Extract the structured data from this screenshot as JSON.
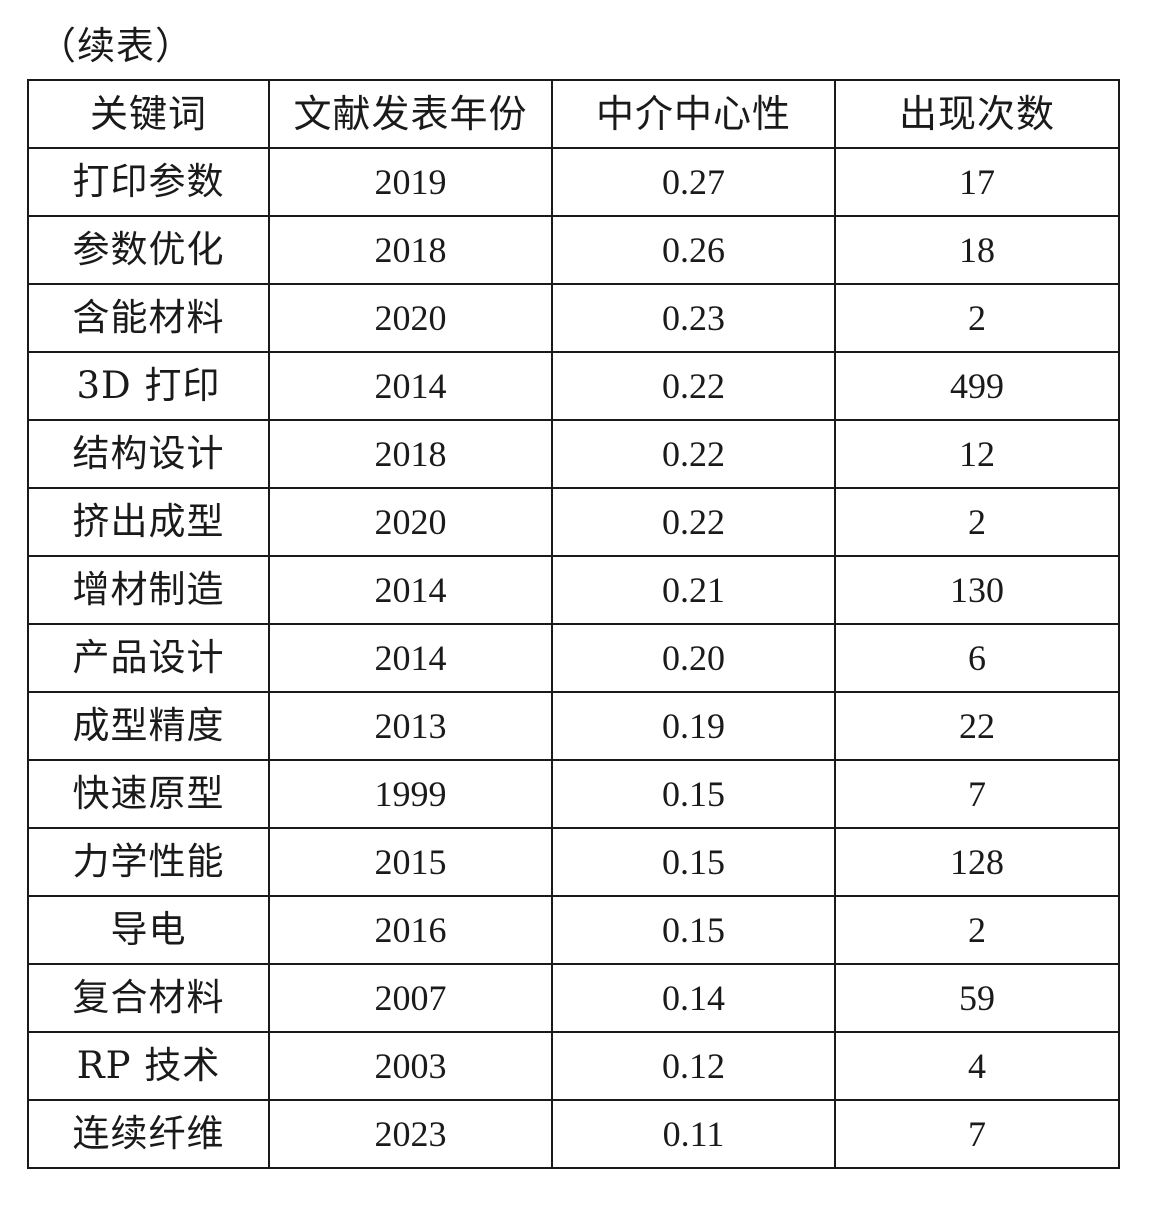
{
  "caption": "（续表）",
  "table": {
    "headers": [
      "关键词",
      "文献发表年份",
      "中介中心性",
      "出现次数"
    ],
    "rows": [
      [
        "打印参数",
        "2019",
        "0.27",
        "17"
      ],
      [
        "参数优化",
        "2018",
        "0.26",
        "18"
      ],
      [
        "含能材料",
        "2020",
        "0.23",
        "2"
      ],
      [
        "3D 打印",
        "2014",
        "0.22",
        "499"
      ],
      [
        "结构设计",
        "2018",
        "0.22",
        "12"
      ],
      [
        "挤出成型",
        "2020",
        "0.22",
        "2"
      ],
      [
        "增材制造",
        "2014",
        "0.21",
        "130"
      ],
      [
        "产品设计",
        "2014",
        "0.20",
        "6"
      ],
      [
        "成型精度",
        "2013",
        "0.19",
        "22"
      ],
      [
        "快速原型",
        "1999",
        "0.15",
        "7"
      ],
      [
        "力学性能",
        "2015",
        "0.15",
        "128"
      ],
      [
        "导电",
        "2016",
        "0.15",
        "2"
      ],
      [
        "复合材料",
        "2007",
        "0.14",
        "59"
      ],
      [
        "RP 技术",
        "2003",
        "0.12",
        "4"
      ],
      [
        "连续纤维",
        "2023",
        "0.11",
        "7"
      ]
    ]
  }
}
